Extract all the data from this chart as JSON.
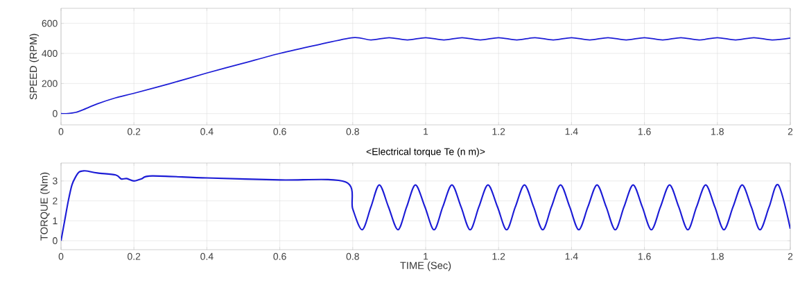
{
  "chart_data": [
    {
      "type": "line",
      "ylabel": "SPEED (RPM)",
      "xlim": [
        0,
        2
      ],
      "ylim": [
        -75,
        700
      ],
      "xticks": [
        0,
        0.2,
        0.4,
        0.6,
        0.8,
        1,
        1.2,
        1.4,
        1.6,
        1.8,
        2
      ],
      "yticks": [
        0,
        200,
        400,
        600
      ],
      "grid": true,
      "series": [
        {
          "color": "#1c1cd6",
          "x": [
            0,
            0.02,
            0.04,
            0.06,
            0.1,
            0.15,
            0.2,
            0.3,
            0.4,
            0.5,
            0.6,
            0.7,
            0.8,
            0.85,
            0.9,
            0.95,
            1.0,
            1.05,
            1.1,
            1.15,
            1.2,
            1.25,
            1.3,
            1.35,
            1.4,
            1.45,
            1.5,
            1.55,
            1.6,
            1.65,
            1.7,
            1.75,
            1.8,
            1.85,
            1.9,
            1.95,
            2.0
          ],
          "values": [
            0,
            1,
            8,
            25,
            65,
            105,
            135,
            200,
            270,
            335,
            400,
            455,
            505,
            490,
            505,
            490,
            505,
            490,
            505,
            490,
            505,
            490,
            505,
            490,
            505,
            490,
            505,
            490,
            505,
            490,
            505,
            490,
            505,
            490,
            505,
            490,
            502
          ]
        }
      ]
    },
    {
      "type": "line",
      "title": "<Electrical torque Te (n m)>",
      "xlabel": "TIME (Sec)",
      "ylabel": "TORQUE (Nm)",
      "xlim": [
        0,
        2
      ],
      "ylim": [
        -0.45,
        3.9
      ],
      "xticks": [
        0,
        0.2,
        0.4,
        0.6,
        0.8,
        1,
        1.2,
        1.4,
        1.6,
        1.8,
        2
      ],
      "yticks": [
        0,
        1,
        2,
        3
      ],
      "grid": true,
      "series": [
        {
          "color": "#1c1cd6",
          "x": [
            0,
            0.01,
            0.02,
            0.03,
            0.04,
            0.05,
            0.06,
            0.07,
            0.1,
            0.15,
            0.165,
            0.18,
            0.2,
            0.22,
            0.25,
            0.4,
            0.6,
            0.78,
            0.8,
            0.826,
            0.85,
            0.873,
            0.898,
            0.924,
            0.948,
            0.972,
            0.998,
            1.023,
            1.047,
            1.072,
            1.097,
            1.122,
            1.146,
            1.171,
            1.197,
            1.222,
            1.246,
            1.271,
            1.296,
            1.321,
            1.345,
            1.37,
            1.395,
            1.42,
            1.445,
            1.47,
            1.495,
            1.52,
            1.544,
            1.569,
            1.594,
            1.619,
            1.644,
            1.669,
            1.694,
            1.719,
            1.743,
            1.768,
            1.793,
            1.818,
            1.843,
            1.868,
            1.893,
            1.917,
            1.942,
            1.967,
            2.0
          ],
          "values": [
            0,
            1.0,
            2.0,
            2.8,
            3.2,
            3.45,
            3.5,
            3.5,
            3.4,
            3.3,
            3.1,
            3.12,
            3.0,
            3.1,
            3.25,
            3.15,
            3.05,
            2.95,
            1.6,
            0.55,
            1.7,
            2.8,
            1.7,
            0.55,
            1.7,
            2.8,
            1.7,
            0.55,
            1.7,
            2.8,
            1.7,
            0.55,
            1.7,
            2.8,
            1.7,
            0.55,
            1.7,
            2.8,
            1.7,
            0.55,
            1.7,
            2.8,
            1.7,
            0.55,
            1.7,
            2.8,
            1.7,
            0.55,
            1.7,
            2.8,
            1.7,
            0.55,
            1.7,
            2.8,
            1.7,
            0.55,
            1.7,
            2.8,
            1.7,
            0.55,
            1.7,
            2.8,
            1.7,
            0.55,
            1.7,
            2.8,
            0.6
          ]
        }
      ]
    }
  ]
}
